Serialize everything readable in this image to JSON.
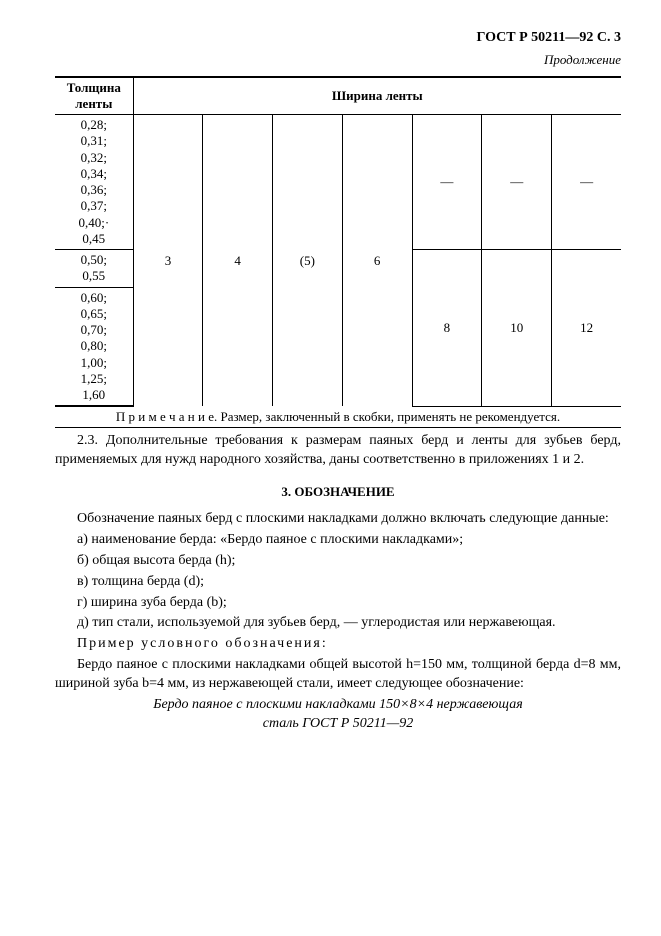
{
  "header": {
    "doc_ref": "ГОСТ Р 50211—92 С. 3",
    "continuation": "Продолжение"
  },
  "table": {
    "col_headers": {
      "first": "Толщина ленты",
      "span": "Ширина ленты"
    },
    "groups": {
      "g1": [
        "0,28;",
        "0,31;",
        "0,32;",
        "0,34;",
        "0,36;",
        "0,37;",
        "0,40;·",
        "0,45"
      ],
      "g2": [
        "0,50;",
        "0,55"
      ],
      "g3": [
        "0,60;",
        "0,65;",
        "0,70;",
        "0,80;",
        "1,00;",
        "1,25;",
        "1,60"
      ]
    },
    "width_values": {
      "c3": "3",
      "c4": "4",
      "c5": "(5)",
      "c6": "6",
      "c8": "8",
      "c10": "10",
      "c12": "12",
      "dash": "—"
    },
    "note_label": "П р и м е ч а н и е.",
    "note_text": "Размер, заключенный в скобки, применять не рекомендуется."
  },
  "section2_3": "2.3. Дополнительные требования к размерам паяных берд и ленты для зубьев берд, применяемых для нужд народного хозяйства, даны соответственно в приложениях 1 и 2.",
  "section3": {
    "title": "3. ОБОЗНАЧЕНИЕ",
    "intro": "Обозначение паяных берд с плоскими накладками должно включать следующие данные:",
    "items": {
      "a": "а) наименование берда: «Бердо паяное с плоскими накладками»;",
      "b": "б) общая высота берда (h);",
      "c": "в) толщина берда (d);",
      "d": "г) ширина зуба берда (b);",
      "e": "д) тип стали, используемой для зубьев берд, — углеродистая или нержавеющая."
    },
    "example_label": "Пример условного обозначения:",
    "example_body": "Бердо паяное с плоскими накладками общей высотой h=150 мм, толщиной берда d=8 мм, шириной зуба b=4 мм, из нержавеющей стали, имеет следующее обозначение:",
    "example_italic_l1": "Бердо паяное с плоскими накладками 150×8×4 нержавеющая",
    "example_italic_l2": "сталь ГОСТ Р 50211—92"
  }
}
